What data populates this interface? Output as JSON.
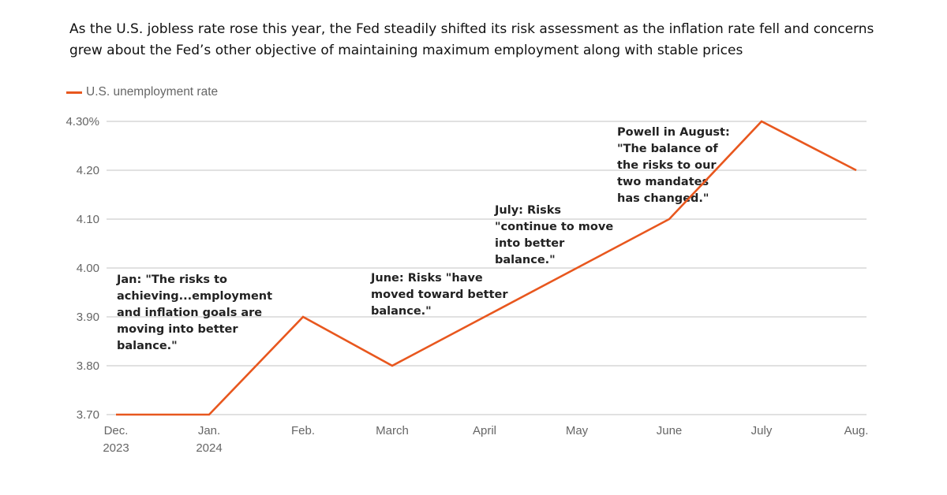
{
  "subtitle": "As the U.S. jobless rate rose this year, the Fed steadily shifted its risk assessment as the inflation rate fell and concerns grew about the Fed’s other objective of maintaining maximum employment along with stable prices",
  "chart_data": {
    "type": "line",
    "title": "",
    "xlabel": "",
    "ylabel": "",
    "categories": [
      [
        "Dec.",
        "2023"
      ],
      [
        "Jan.",
        "2024"
      ],
      [
        "Feb."
      ],
      [
        "March"
      ],
      [
        "April"
      ],
      [
        "May"
      ],
      [
        "June"
      ],
      [
        "July"
      ],
      [
        "Aug."
      ]
    ],
    "series": [
      {
        "name": "U.S. unemployment rate",
        "color": "#e8571e",
        "values": [
          3.7,
          3.7,
          3.9,
          3.8,
          3.9,
          4.0,
          4.1,
          4.3,
          4.2
        ]
      }
    ],
    "ylim": [
      3.7,
      4.3
    ],
    "yticks": [
      3.7,
      3.8,
      3.9,
      4.0,
      4.1,
      4.2,
      4.3
    ],
    "ytick_labels": [
      "3.70",
      "3.80",
      "3.90",
      "4.00",
      "4.10",
      "4.20",
      "4.30%"
    ],
    "grid": "horizontal",
    "legend": "top-left",
    "annotations": [
      {
        "anchor_category": 0,
        "y": 4.0,
        "lines": [
          "Jan: \"The risks to",
          "achieving...employment",
          "and inflation goals are",
          "moving into better",
          "balance.\""
        ]
      },
      {
        "anchor_category": 3,
        "y": 4.0,
        "lines": [
          "June: Risks \"have",
          "moved toward better",
          "balance.\""
        ]
      },
      {
        "anchor_category": 4,
        "y": 4.14,
        "lines": [
          "July: Risks",
          "\"continue to move",
          "into better",
          "balance.\""
        ]
      },
      {
        "anchor_category": 5,
        "y": 4.3,
        "lines": [
          "Powell in August:",
          "\"The balance of",
          "the risks to our",
          "two mandates",
          "has changed.\""
        ]
      }
    ]
  }
}
